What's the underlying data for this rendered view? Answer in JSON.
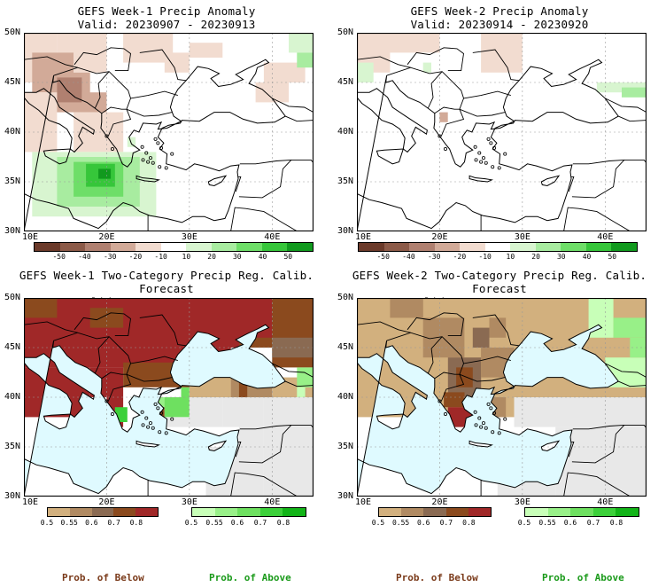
{
  "panels": [
    {
      "title_line1": "GEFS Week-1 Precip Anomaly",
      "title_line2": "Valid: 20230907 - 20230913",
      "lat_labels": [
        "50N",
        "45N",
        "40N",
        "35N",
        "30N"
      ],
      "lon_labels": [
        "10E",
        "20E",
        "30E",
        "40E"
      ],
      "colorbar_ticks": [
        "-50",
        "-40",
        "-30",
        "-20",
        "-10",
        "10",
        "20",
        "30",
        "40",
        "50"
      ]
    },
    {
      "title_line1": "GEFS Week-2 Precip Anomaly",
      "title_line2": "Valid: 20230914 - 20230920",
      "lat_labels": [
        "50N",
        "45N",
        "40N",
        "35N",
        "30N"
      ],
      "lon_labels": [
        "10E",
        "20E",
        "30E",
        "40E"
      ],
      "colorbar_ticks": [
        "-50",
        "-40",
        "-30",
        "-20",
        "-10",
        "10",
        "20",
        "30",
        "40",
        "50"
      ]
    },
    {
      "title_line1": "GEFS Week-1 Two-Category Precip Reg. Calib. Forecast",
      "title_line2": "Valid: 20230907 - 20230913",
      "lat_labels": [
        "50N",
        "45N",
        "40N",
        "35N",
        "30N"
      ],
      "lon_labels": [
        "10E",
        "20E",
        "30E",
        "40E"
      ],
      "below_ticks": [
        "0.5",
        "0.55",
        "0.6",
        "0.7",
        "0.8"
      ],
      "above_ticks": [
        "0.5",
        "0.55",
        "0.6",
        "0.7",
        "0.8"
      ]
    },
    {
      "title_line1": "GEFS Week-2 Two-Category Precip Reg. Calib. Forecast",
      "title_line2": "Valid: 20230914 - 20230920",
      "lat_labels": [
        "50N",
        "45N",
        "40N",
        "35N",
        "30N"
      ],
      "lon_labels": [
        "10E",
        "20E",
        "30E",
        "40E"
      ],
      "below_ticks": [
        "0.5",
        "0.55",
        "0.6",
        "0.7",
        "0.8"
      ],
      "above_ticks": [
        "0.5",
        "0.55",
        "0.6",
        "0.7",
        "0.8"
      ]
    }
  ],
  "footer": {
    "below_label": "Prob. of Below",
    "above_label": "Prob. of Above"
  },
  "colors": {
    "anomaly_scale": [
      "#6b3a2a",
      "#8c5a48",
      "#b08070",
      "#d2aa98",
      "#f2dcd0",
      "#ffffff",
      "#d8f5d0",
      "#a8eca0",
      "#6ede68",
      "#36c63a",
      "#119a1e"
    ],
    "below_scale": [
      "#d2b07e",
      "#b08a62",
      "#8a6a52",
      "#8b4a1e",
      "#a02828"
    ],
    "above_scale": [
      "#c8ffb8",
      "#98f088",
      "#6ee060",
      "#3cd03a",
      "#12b418"
    ],
    "sea": "#dffaff",
    "no_data": "#e8e8e8"
  }
}
